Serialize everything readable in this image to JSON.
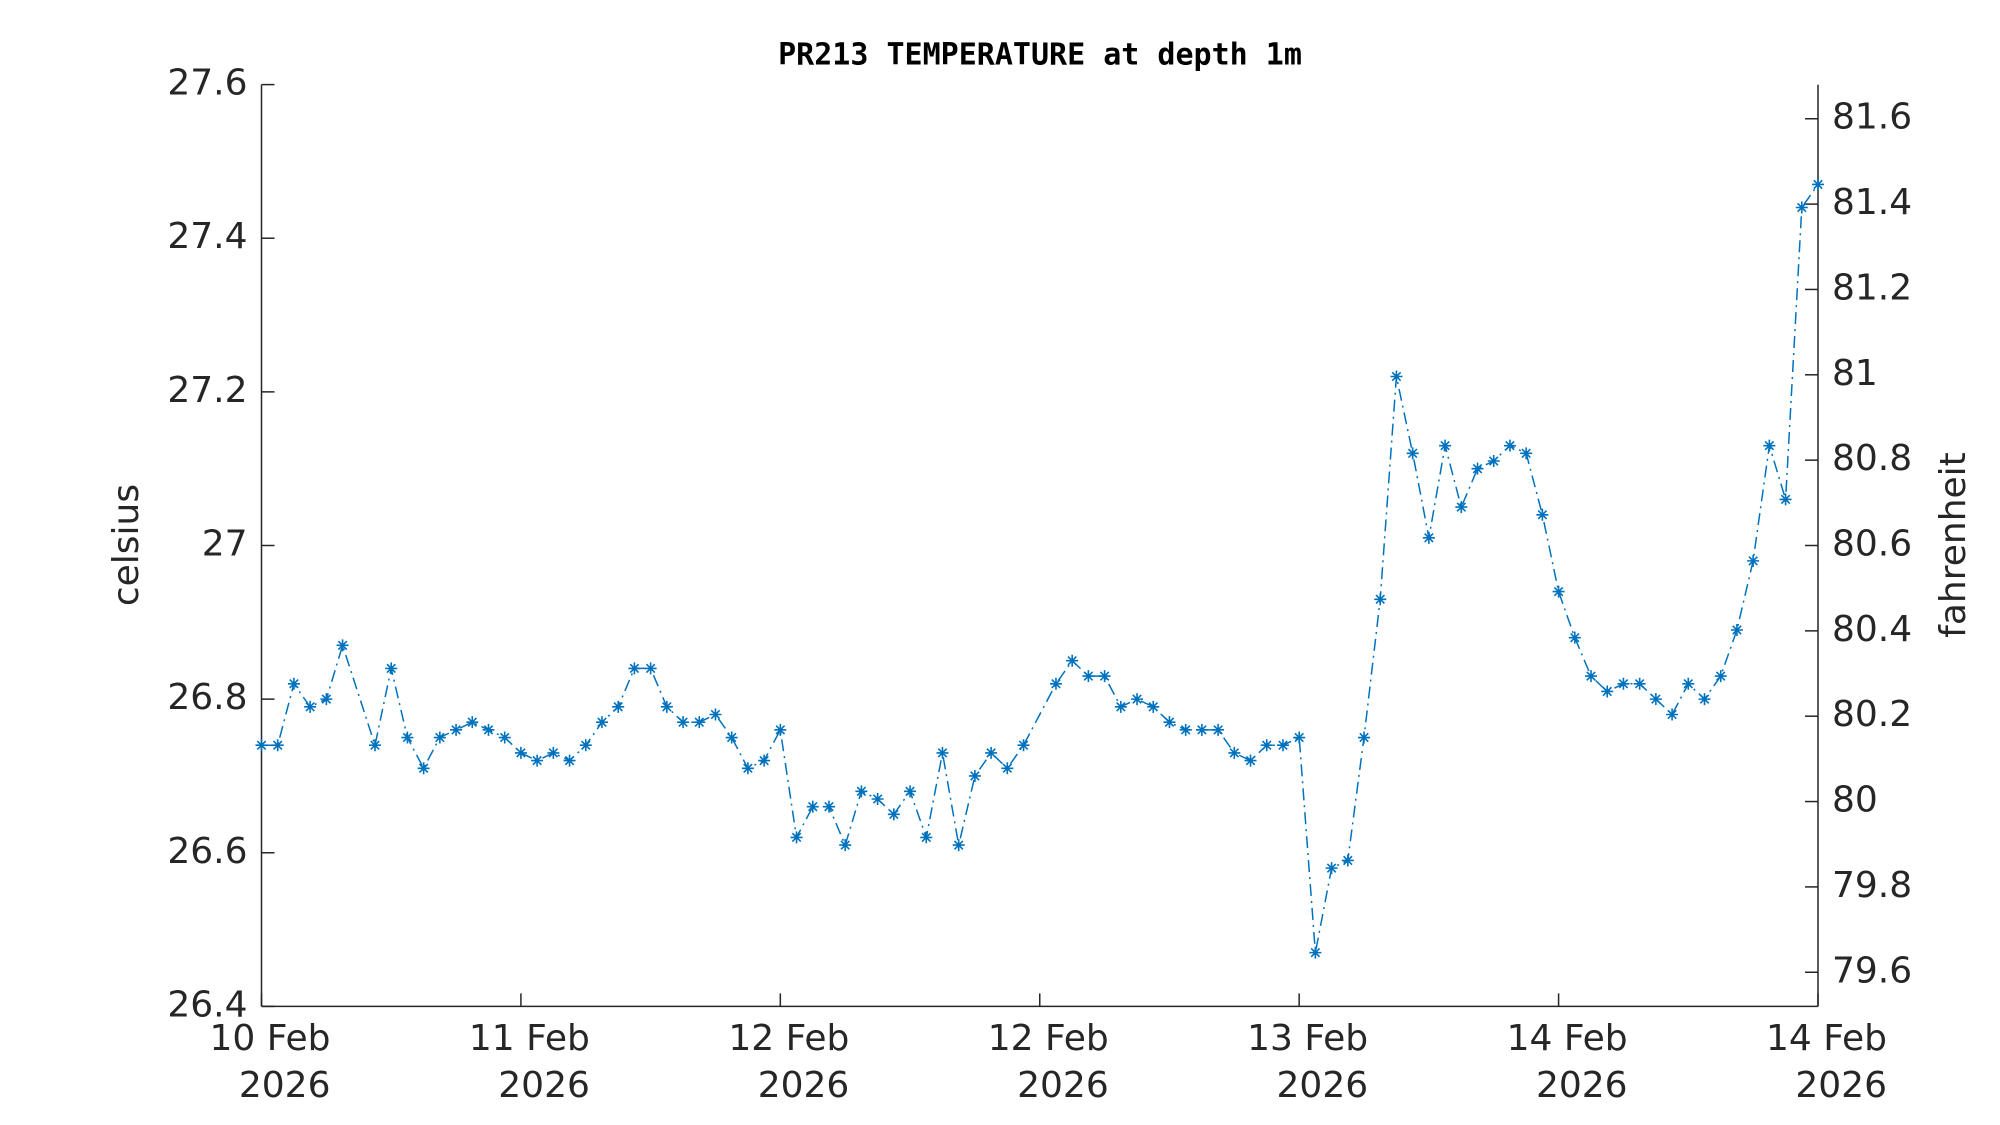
{
  "chart_data": {
    "type": "line",
    "title": "PR213 TEMPERATURE at depth 1m",
    "ylabel": "celsius",
    "y2label": "fahrenheit",
    "x": [
      0,
      1,
      2,
      3,
      4,
      5,
      7,
      8,
      9,
      10,
      11,
      12,
      13,
      14,
      15,
      16,
      17,
      18,
      19,
      20,
      21,
      22,
      23,
      24,
      25,
      26,
      27,
      28,
      29,
      30,
      31,
      32,
      33,
      34,
      35,
      36,
      37,
      38,
      39,
      40,
      41,
      42,
      43,
      44,
      45,
      46,
      47,
      49,
      50,
      51,
      52,
      53,
      54,
      55,
      56,
      57,
      58,
      59,
      60,
      61,
      62,
      63,
      64,
      65,
      66,
      67,
      68,
      69,
      70,
      71,
      72,
      73,
      74,
      75,
      76,
      77,
      78,
      79,
      80,
      81,
      82,
      83,
      84,
      85,
      86,
      87,
      88,
      89,
      90,
      91,
      92,
      93,
      94,
      95,
      96
    ],
    "series": [
      {
        "color": "#0072bd",
        "values": [
          26.74,
          26.74,
          26.82,
          26.79,
          26.8,
          26.87,
          26.74,
          26.84,
          26.75,
          26.71,
          26.75,
          26.76,
          26.77,
          26.76,
          26.75,
          26.73,
          26.72,
          26.73,
          26.72,
          26.74,
          26.77,
          26.79,
          26.84,
          26.84,
          26.79,
          26.77,
          26.77,
          26.78,
          26.75,
          26.71,
          26.72,
          26.76,
          26.62,
          26.66,
          26.66,
          26.61,
          26.68,
          26.67,
          26.65,
          26.68,
          26.62,
          26.73,
          26.61,
          26.7,
          26.73,
          26.71,
          26.74,
          26.82,
          26.85,
          26.83,
          26.83,
          26.79,
          26.8,
          26.79,
          26.77,
          26.76,
          26.76,
          26.76,
          26.73,
          26.72,
          26.74,
          26.74,
          26.75,
          26.47,
          26.58,
          26.59,
          26.75,
          26.93,
          27.22,
          27.12,
          27.01,
          27.13,
          27.05,
          27.1,
          27.11,
          27.13,
          27.12,
          27.04,
          26.94,
          26.88,
          26.83,
          26.81,
          26.82,
          26.82,
          26.8,
          26.78,
          26.82,
          26.8,
          26.83,
          26.89,
          26.98,
          27.13,
          27.06,
          27.44,
          27.47
        ]
      }
    ],
    "xlim": [
      0,
      96
    ],
    "xticks": [
      {
        "value": 0,
        "label": "10 Feb\n2026"
      },
      {
        "value": 16,
        "label": "11 Feb\n2026"
      },
      {
        "value": 32,
        "label": "12 Feb\n2026"
      },
      {
        "value": 48,
        "label": "12 Feb\n2026"
      },
      {
        "value": 64,
        "label": "13 Feb\n2026"
      },
      {
        "value": 80,
        "label": "14 Feb\n2026"
      },
      {
        "value": 96,
        "label": "14 Feb\n2026"
      }
    ],
    "ylim": [
      26.4,
      27.6
    ],
    "yticks": [
      26.4,
      26.6,
      26.8,
      27,
      27.2,
      27.4,
      27.6
    ],
    "y2lim": [
      79.52,
      81.68
    ],
    "y2ticks": [
      79.6,
      79.8,
      80,
      80.2,
      80.4,
      80.6,
      80.8,
      81,
      81.2,
      81.4,
      81.6
    ]
  }
}
